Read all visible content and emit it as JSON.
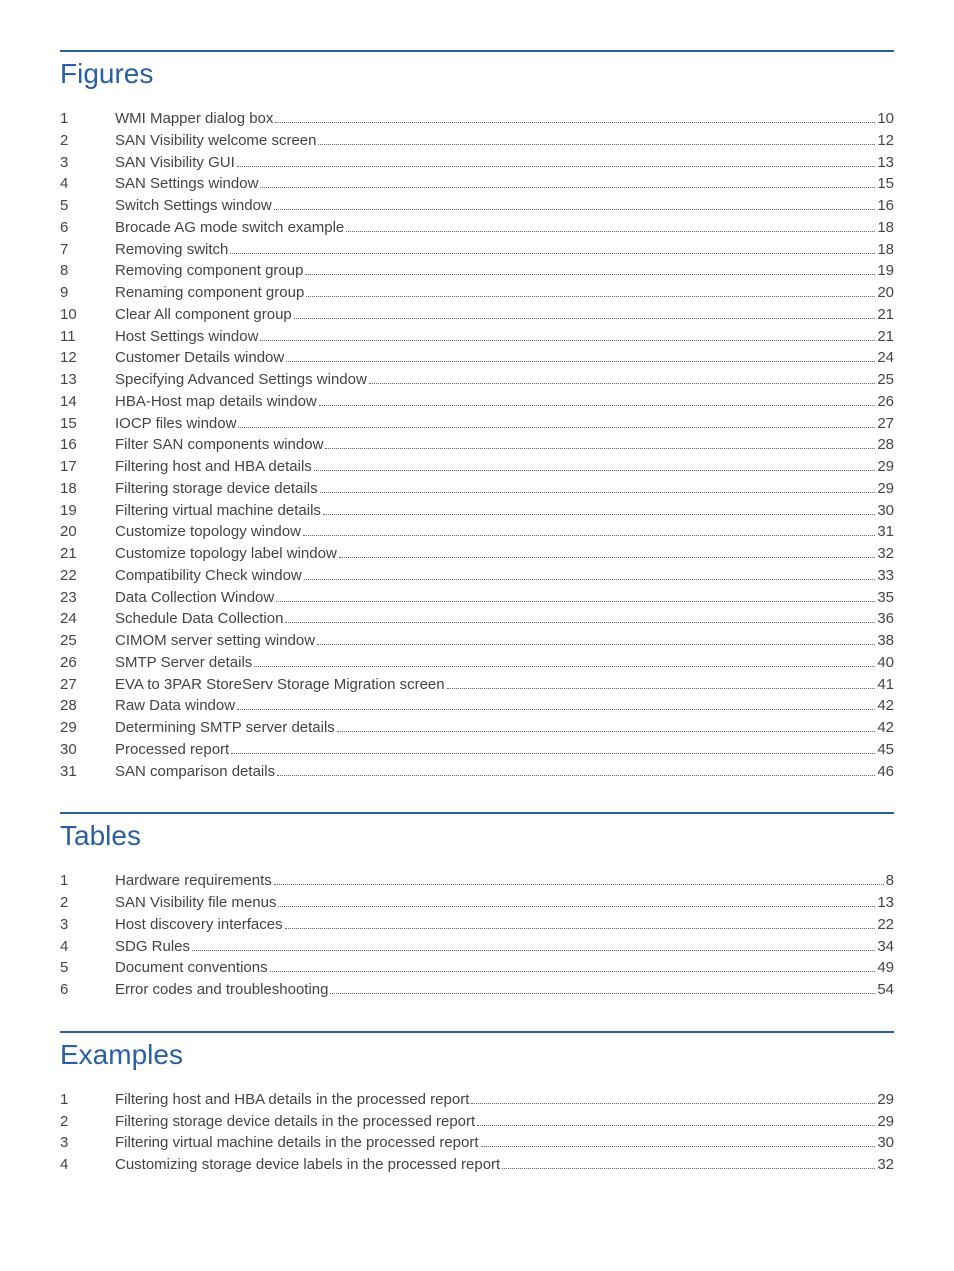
{
  "colors": {
    "rule": "#2a5fa5",
    "heading": "#2a5fa5"
  },
  "sections": [
    {
      "title": "Figures",
      "entries": [
        {
          "num": "1",
          "label": "WMI Mapper dialog box",
          "page": "10"
        },
        {
          "num": "2",
          "label": "SAN Visibility welcome screen",
          "page": "12"
        },
        {
          "num": "3",
          "label": "SAN Visibility GUI",
          "page": "13"
        },
        {
          "num": "4",
          "label": "SAN Settings window",
          "page": "15"
        },
        {
          "num": "5",
          "label": "Switch Settings window",
          "page": "16"
        },
        {
          "num": "6",
          "label": "Brocade AG mode switch example",
          "page": "18"
        },
        {
          "num": "7",
          "label": "Removing switch",
          "page": "18"
        },
        {
          "num": "8",
          "label": "Removing component group",
          "page": "19"
        },
        {
          "num": "9",
          "label": "Renaming component group",
          "page": "20"
        },
        {
          "num": "10",
          "label": "Clear All component group",
          "page": "21"
        },
        {
          "num": "11",
          "label": "Host Settings window",
          "page": "21"
        },
        {
          "num": "12",
          "label": "Customer Details window",
          "page": "24"
        },
        {
          "num": "13",
          "label": "Specifying Advanced Settings window",
          "page": "25"
        },
        {
          "num": "14",
          "label": "HBA-Host map details window",
          "page": "26"
        },
        {
          "num": "15",
          "label": "IOCP files window",
          "page": "27"
        },
        {
          "num": "16",
          "label": "Filter SAN components window",
          "page": "28"
        },
        {
          "num": "17",
          "label": "Filtering host and HBA details",
          "page": "29"
        },
        {
          "num": "18",
          "label": "Filtering storage device details",
          "page": "29"
        },
        {
          "num": "19",
          "label": "Filtering virtual machine details",
          "page": "30"
        },
        {
          "num": "20",
          "label": "Customize topology window",
          "page": "31"
        },
        {
          "num": "21",
          "label": "Customize topology label window",
          "page": "32"
        },
        {
          "num": "22",
          "label": "Compatibility Check window",
          "page": "33"
        },
        {
          "num": "23",
          "label": "Data Collection Window",
          "page": "35"
        },
        {
          "num": "24",
          "label": "Schedule Data Collection",
          "page": "36"
        },
        {
          "num": "25",
          "label": "CIMOM server setting window",
          "page": "38"
        },
        {
          "num": "26",
          "label": "SMTP Server details",
          "page": "40"
        },
        {
          "num": "27",
          "label": "EVA to 3PAR StoreServ Storage Migration screen",
          "page": "41"
        },
        {
          "num": "28",
          "label": "Raw Data window",
          "page": "42"
        },
        {
          "num": "29",
          "label": "Determining SMTP server details",
          "page": "42"
        },
        {
          "num": "30",
          "label": "Processed report",
          "page": "45"
        },
        {
          "num": "31",
          "label": "SAN comparison details",
          "page": "46"
        }
      ]
    },
    {
      "title": "Tables",
      "entries": [
        {
          "num": "1",
          "label": "Hardware requirements",
          "page": "8"
        },
        {
          "num": "2",
          "label": "SAN Visibility file menus",
          "page": "13"
        },
        {
          "num": "3",
          "label": "Host discovery interfaces",
          "page": "22"
        },
        {
          "num": "4",
          "label": "SDG Rules",
          "page": "34"
        },
        {
          "num": "5",
          "label": "Document conventions",
          "page": "49"
        },
        {
          "num": "6",
          "label": "Error codes and troubleshooting",
          "page": "54"
        }
      ]
    },
    {
      "title": "Examples",
      "entries": [
        {
          "num": "1",
          "label": "Filtering host and HBA details in the processed report",
          "page": "29"
        },
        {
          "num": "2",
          "label": "Filtering storage device details in the processed report",
          "page": "29"
        },
        {
          "num": "3",
          "label": "Filtering virtual machine details in the processed report",
          "page": "30"
        },
        {
          "num": "4",
          "label": "Customizing storage device labels in the processed report",
          "page": "32"
        }
      ]
    }
  ]
}
